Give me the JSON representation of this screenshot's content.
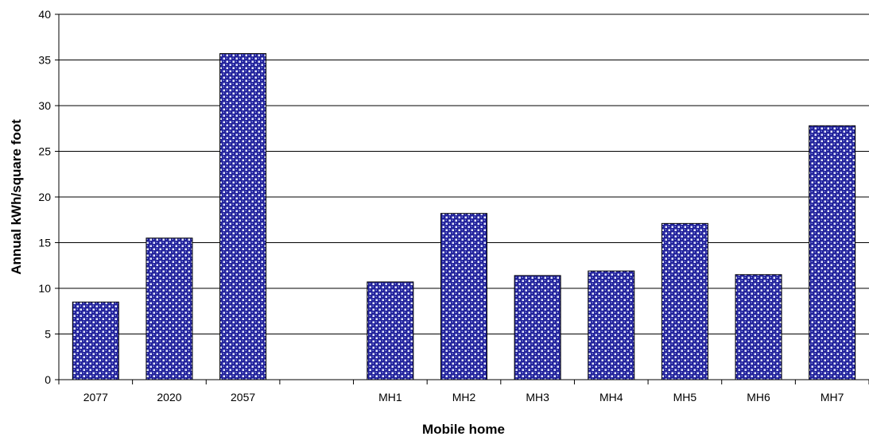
{
  "chart_data": {
    "type": "bar",
    "title": "",
    "xlabel": "Mobile home",
    "ylabel": "Annual kWh/square foot",
    "ylim": [
      0,
      40
    ],
    "yticks": [
      0,
      5,
      10,
      15,
      20,
      25,
      30,
      35,
      40
    ],
    "grid": true,
    "legend": "none",
    "categories": [
      "2077",
      "2020",
      "2057",
      "",
      "MH1",
      "MH2",
      "MH3",
      "MH4",
      "MH5",
      "MH6",
      "MH7"
    ],
    "values": [
      8.5,
      15.5,
      35.7,
      null,
      10.7,
      18.2,
      11.4,
      11.9,
      17.1,
      11.5,
      27.8
    ],
    "bar_color": "#2b2bb0",
    "bar_pattern": "white checkered dots on dark blue"
  }
}
